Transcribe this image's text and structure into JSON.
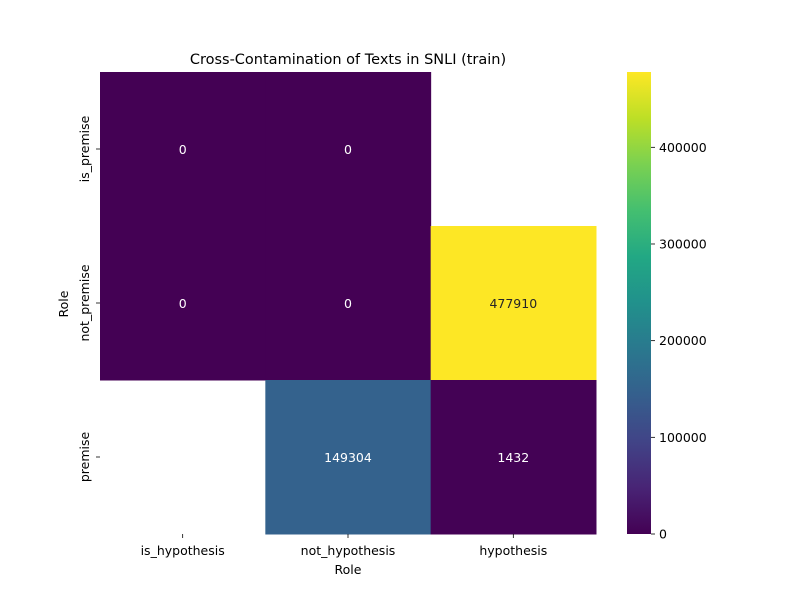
{
  "chart_data": {
    "type": "heatmap",
    "title": "Cross-Contamination of Texts in SNLI (train)",
    "xlabel": "Role",
    "ylabel": "Role",
    "x_categories": [
      "is_hypothesis",
      "not_hypothesis",
      "hypothesis"
    ],
    "y_categories": [
      "is_premise",
      "not_premise",
      "premise"
    ],
    "values": [
      [
        0,
        0,
        null
      ],
      [
        0,
        0,
        477910
      ],
      [
        null,
        149304,
        1432
      ]
    ],
    "colormap": "viridis",
    "vmin": 0,
    "vmax": 477910,
    "colorbar_ticks": [
      0,
      100000,
      200000,
      300000,
      400000
    ]
  }
}
